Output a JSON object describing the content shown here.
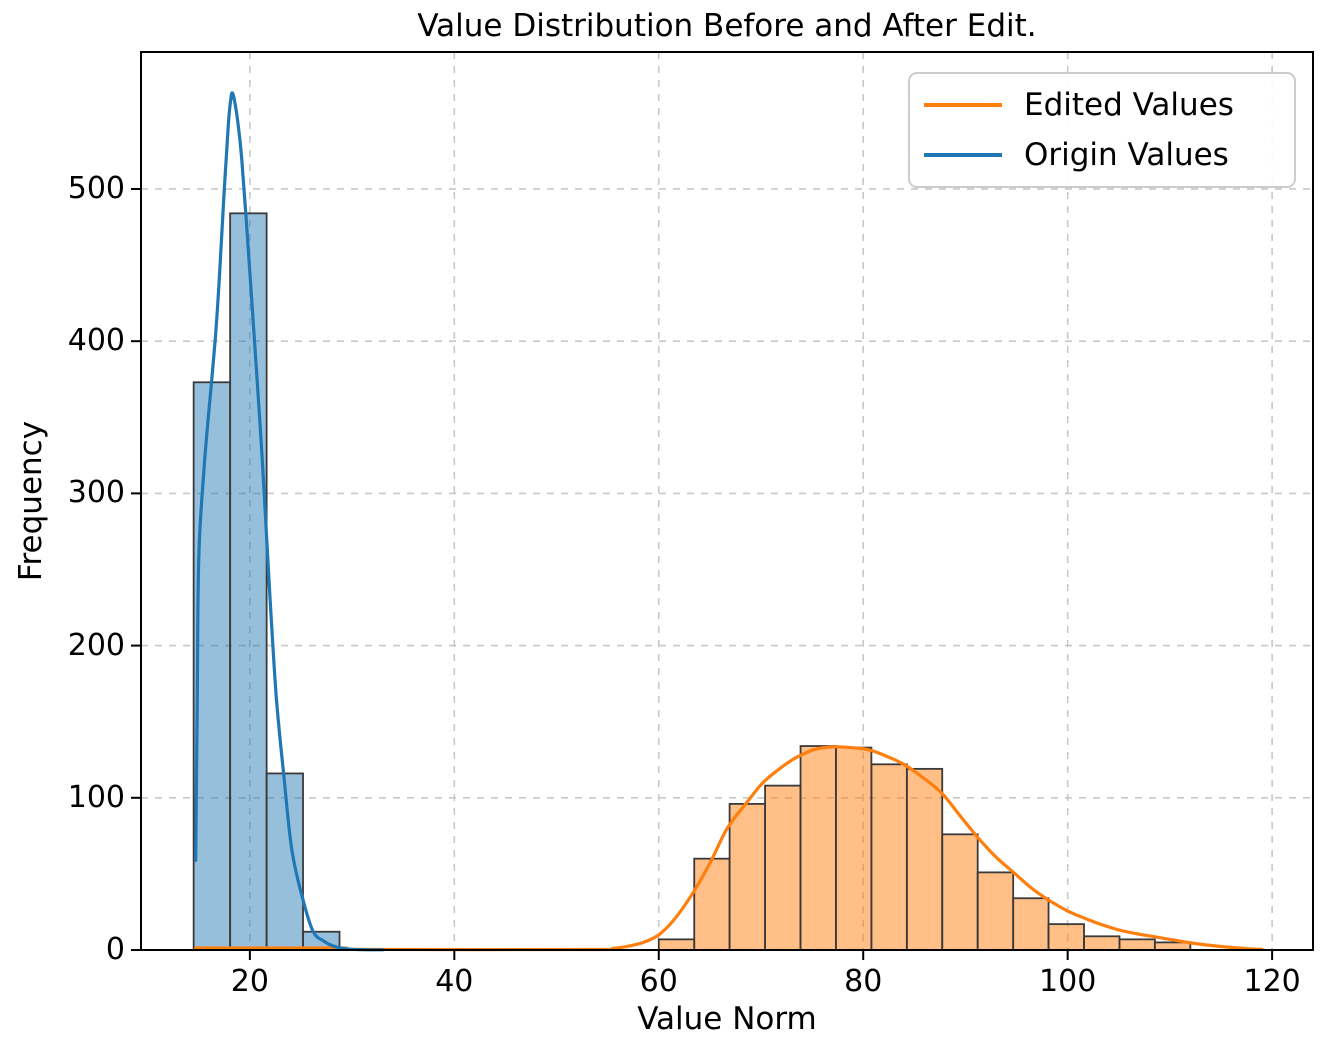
{
  "chart_data": {
    "type": "histogram+kde",
    "title": "Value Distribution Before and After Edit.",
    "xlabel": "Value Norm",
    "ylabel": "Frequency",
    "xlim": [
      9.35,
      124.0
    ],
    "ylim": [
      0,
      590
    ],
    "x_ticks": [
      20,
      40,
      60,
      80,
      100,
      120
    ],
    "y_ticks": [
      0,
      100,
      200,
      300,
      400,
      500
    ],
    "grid": "dashed-both",
    "legend_position": "upper right",
    "colors": {
      "grid": "#c8c8c8",
      "spine": "#000000",
      "bar_edge": "#3a3a3a"
    },
    "series": [
      {
        "name": "Edited Values",
        "line_color": "#ff7f0e",
        "fill_color": "#ff7f0e",
        "fill_opacity": 0.5,
        "bin_edges": [
          60.0,
          63.47,
          66.93,
          70.4,
          73.87,
          77.33,
          80.8,
          84.27,
          87.73,
          91.2,
          94.67,
          98.13,
          101.6,
          105.07,
          108.53,
          112.0
        ],
        "counts": [
          7,
          60,
          96,
          108,
          134,
          133,
          122,
          119,
          76,
          51,
          34,
          17,
          9,
          7,
          5
        ],
        "kde": [
          [
            14.7,
            1.3
          ],
          [
            28.8,
            1.3
          ],
          [
            30,
            0.4
          ],
          [
            54,
            0.3
          ],
          [
            55.5,
            1
          ],
          [
            57,
            2.5
          ],
          [
            58.5,
            5
          ],
          [
            60,
            10
          ],
          [
            61.5,
            20
          ],
          [
            63.2,
            36
          ],
          [
            65,
            57
          ],
          [
            66.7,
            80
          ],
          [
            68.5,
            96
          ],
          [
            70.2,
            110
          ],
          [
            72,
            120
          ],
          [
            73.6,
            127
          ],
          [
            75.4,
            132
          ],
          [
            77.1,
            133.5
          ],
          [
            78.8,
            133
          ],
          [
            80.6,
            131.5
          ],
          [
            82.4,
            127
          ],
          [
            84.1,
            121.5
          ],
          [
            85.9,
            113
          ],
          [
            87.7,
            103
          ],
          [
            89.5,
            88
          ],
          [
            91.2,
            74
          ],
          [
            93,
            61
          ],
          [
            94.7,
            51
          ],
          [
            96.4,
            41
          ],
          [
            98.1,
            33
          ],
          [
            99.9,
            26
          ],
          [
            101.6,
            21
          ],
          [
            103.4,
            16.5
          ],
          [
            105.1,
            13
          ],
          [
            106.9,
            10.5
          ],
          [
            108.6,
            8.6
          ],
          [
            110.4,
            6.5
          ],
          [
            112.1,
            4.6
          ],
          [
            114,
            3
          ],
          [
            116,
            1.7
          ],
          [
            117.5,
            0.9
          ],
          [
            119,
            0.4
          ]
        ]
      },
      {
        "name": "Origin Values",
        "line_color": "#1f77b4",
        "fill_color": "#1f77b4",
        "fill_opacity": 0.47,
        "bin_edges": [
          14.5,
          18.07,
          21.64,
          25.2,
          28.77
        ],
        "counts": [
          373,
          484,
          116,
          12
        ],
        "kde": [
          [
            14.7,
            59
          ],
          [
            14.85,
            160
          ],
          [
            15.0,
            258
          ],
          [
            15.5,
            315
          ],
          [
            16.0,
            355
          ],
          [
            16.6,
            400
          ],
          [
            17.0,
            440
          ],
          [
            17.5,
            500
          ],
          [
            17.9,
            543
          ],
          [
            18.15,
            560
          ],
          [
            18.3,
            563
          ],
          [
            18.5,
            558
          ],
          [
            18.8,
            545
          ],
          [
            19.2,
            520
          ],
          [
            19.8,
            465
          ],
          [
            20.4,
            405
          ],
          [
            21.0,
            345
          ],
          [
            21.4,
            300
          ],
          [
            22.0,
            228
          ],
          [
            22.6,
            165
          ],
          [
            23.3,
            116
          ],
          [
            24.1,
            66
          ],
          [
            25.2,
            33
          ],
          [
            26.2,
            12
          ],
          [
            27.2,
            6
          ],
          [
            28.2,
            2.5
          ],
          [
            29.4,
            0.8
          ],
          [
            31,
            0.2
          ],
          [
            33,
            0.1
          ]
        ]
      }
    ]
  }
}
